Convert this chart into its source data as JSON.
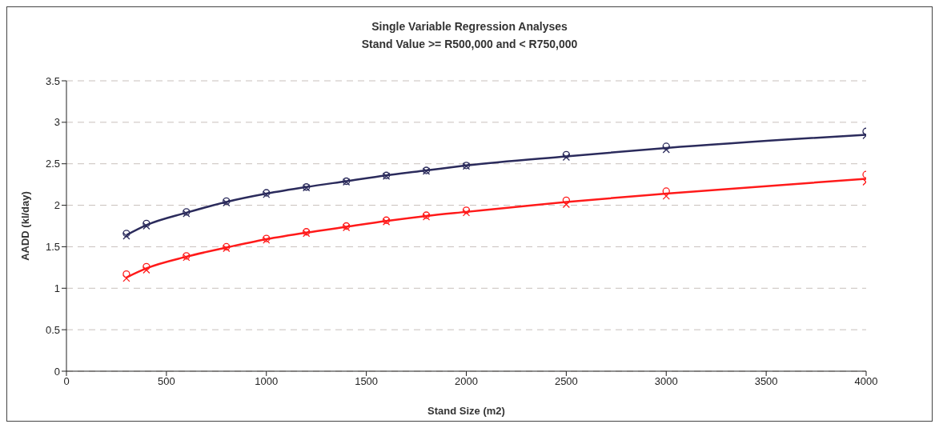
{
  "chart_data": {
    "type": "line",
    "title": "Single Variable  Regression Analyses",
    "subtitle": "Stand Value >= R500,000 and < R750,000",
    "xlabel": "Stand Size (m2)",
    "ylabel": "AADD (kl/day)",
    "x": [
      300,
      400,
      600,
      800,
      1000,
      1200,
      1400,
      1600,
      1800,
      2000,
      2500,
      3000,
      4000
    ],
    "xlim": [
      0,
      4000
    ],
    "xticks": [
      0,
      500,
      1000,
      1500,
      2000,
      2500,
      3000,
      3500,
      4000
    ],
    "ylim": [
      0,
      3.5
    ],
    "yticks": [
      0,
      0.5,
      1,
      1.5,
      2,
      2.5,
      3,
      3.5
    ],
    "grid": "y",
    "series": [
      {
        "color": "#2b2b5c",
        "line_style": "solid",
        "marker": "none",
        "values": [
          1.64,
          1.76,
          1.91,
          2.04,
          2.14,
          2.22,
          2.29,
          2.36,
          2.42,
          2.48,
          2.59,
          2.69,
          2.85
        ]
      },
      {
        "color": "#ff1a1a",
        "line_style": "solid",
        "marker": "none",
        "values": [
          1.13,
          1.24,
          1.38,
          1.49,
          1.59,
          1.67,
          1.74,
          1.81,
          1.87,
          1.92,
          2.04,
          2.14,
          2.32
        ]
      },
      {
        "type": "scatter",
        "color": "#2b2b5c",
        "marker": "circle",
        "values": [
          1.66,
          1.78,
          1.92,
          2.05,
          2.15,
          2.22,
          2.29,
          2.36,
          2.42,
          2.48,
          2.61,
          2.71,
          2.89
        ]
      },
      {
        "type": "scatter",
        "color": "#2b2b5c",
        "marker": "cross",
        "values": [
          1.63,
          1.75,
          1.9,
          2.03,
          2.13,
          2.21,
          2.28,
          2.35,
          2.41,
          2.47,
          2.58,
          2.67,
          2.84
        ]
      },
      {
        "type": "scatter",
        "color": "#ff1a1a",
        "marker": "circle",
        "values": [
          1.17,
          1.26,
          1.39,
          1.5,
          1.6,
          1.68,
          1.75,
          1.82,
          1.88,
          1.94,
          2.06,
          2.17,
          2.37
        ]
      },
      {
        "type": "scatter",
        "color": "#ff1a1a",
        "marker": "cross",
        "values": [
          1.12,
          1.22,
          1.37,
          1.48,
          1.58,
          1.66,
          1.73,
          1.8,
          1.86,
          1.91,
          2.01,
          2.11,
          2.28
        ]
      }
    ]
  }
}
